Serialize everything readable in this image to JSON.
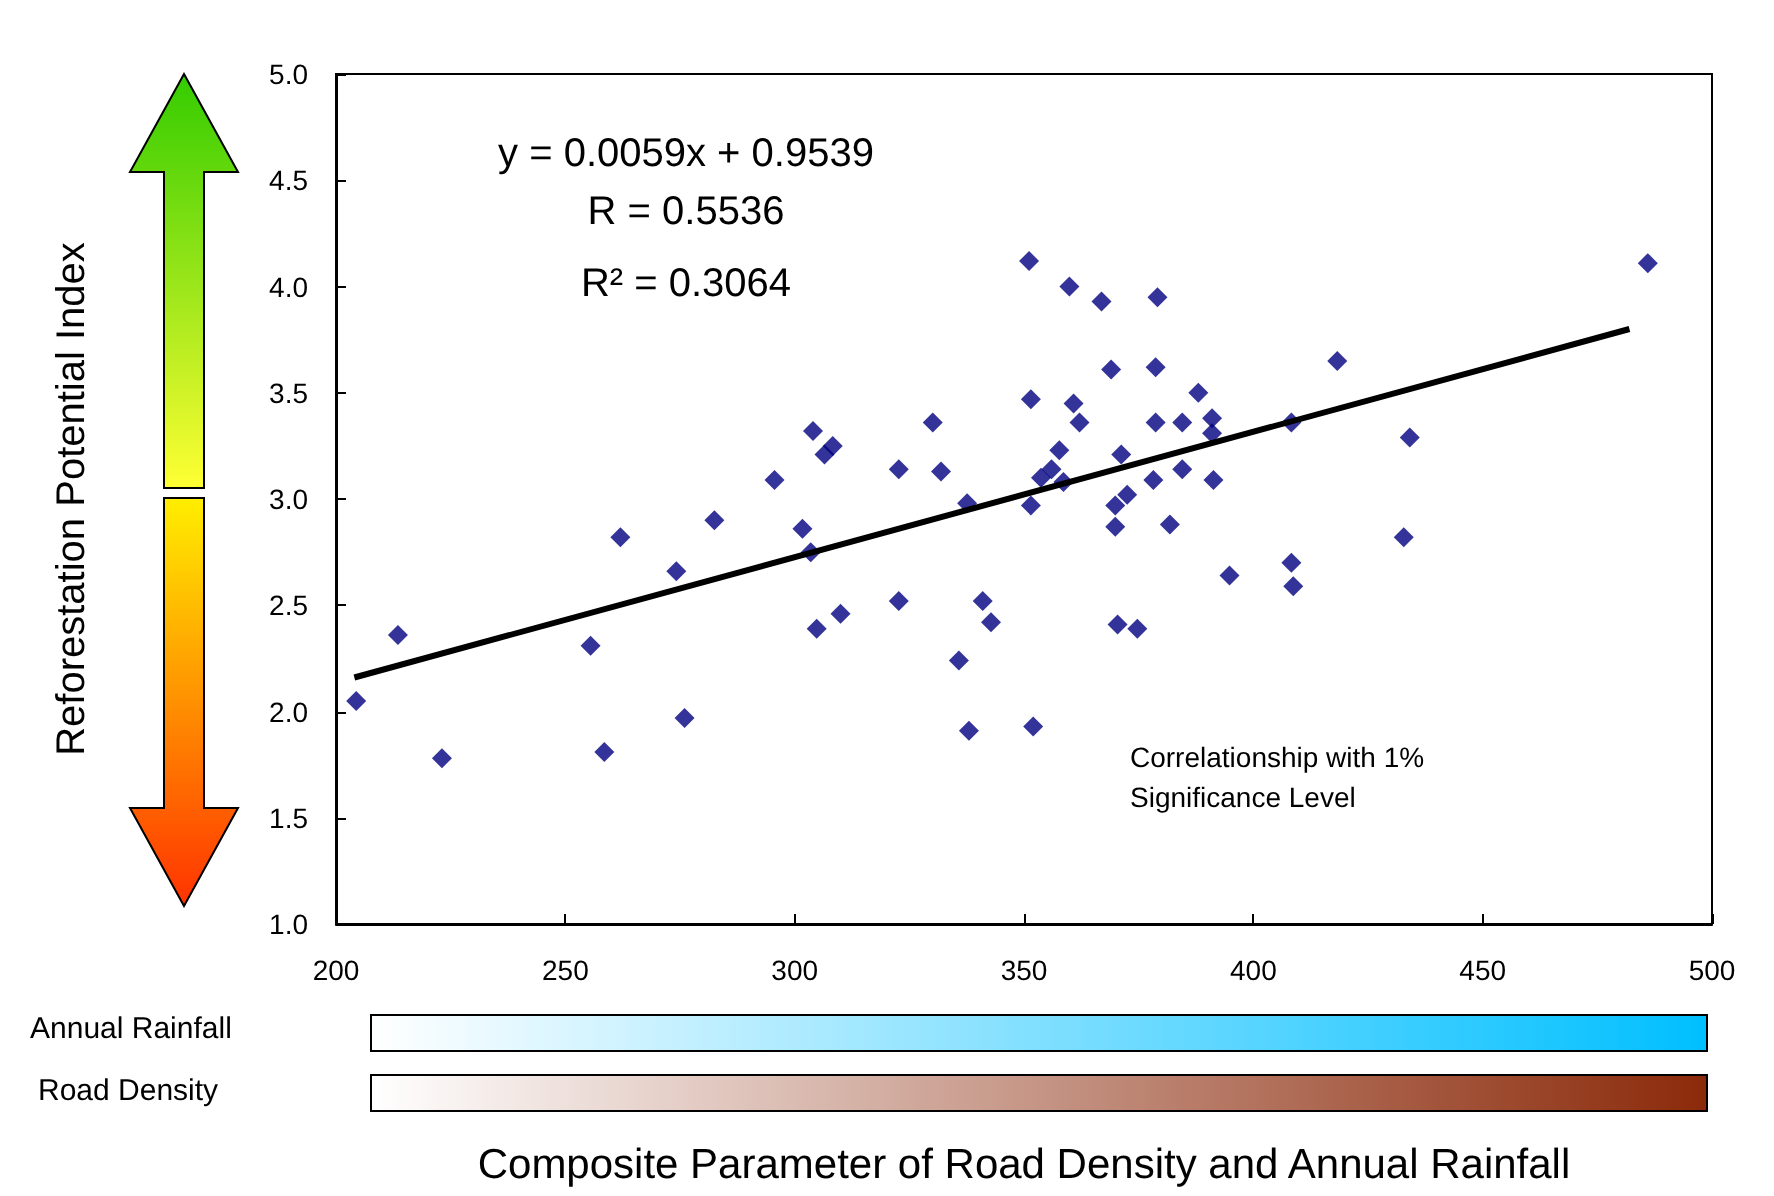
{
  "chart_data": {
    "type": "scatter",
    "xlabel": "Composite Parameter of Road Density and Annual Rainfall",
    "ylabel": "Reforestation Potential Index",
    "annotations": [
      "y = 0.0059x + 0.9539",
      "R = 0.5536",
      "R² = 0.3064",
      "Correlationship with 1% Significance Level",
      "Annual Rainfall",
      "Road Density"
    ],
    "xlim": [
      200,
      500
    ],
    "xticks": [
      200,
      250,
      300,
      350,
      400,
      450,
      500
    ],
    "ylim": [
      1,
      5
    ],
    "yticks": [
      {
        "value": 1,
        "label": "1.0"
      },
      {
        "value": 1.5,
        "label": "1.5"
      },
      {
        "value": 2,
        "label": "2.0"
      },
      {
        "value": 2.5,
        "label": "2.5"
      },
      {
        "value": 3,
        "label": "3.0"
      },
      {
        "value": 3.5,
        "label": "3.5"
      },
      {
        "value": 4,
        "label": "4.0"
      },
      {
        "value": 4.5,
        "label": "4.5"
      },
      {
        "value": 5,
        "label": "5.0"
      }
    ],
    "grid": false,
    "marker": "diamond",
    "series": [
      {
        "color": "#000080",
        "x": [
          204.4,
          213.5,
          223.1,
          255.5,
          258.5,
          262,
          274.2,
          276,
          282.5,
          295.6,
          301.7,
          303.5,
          304,
          304.8,
          306.5,
          308.3,
          310,
          322.7,
          322.7,
          330.1,
          331.9,
          335.8,
          337.6,
          338,
          341,
          342.8,
          351.1,
          351.5,
          351.5,
          352,
          353.7,
          356,
          357.7,
          358.6,
          359.9,
          360.8,
          362.1,
          366.9,
          369,
          369.9,
          369.9,
          370.4,
          371.2,
          372.5,
          374.7,
          378.2,
          378.7,
          379.1,
          378.7,
          381.8,
          384.5,
          384.5,
          388,
          391,
          391,
          391.3,
          394.8,
          408.3,
          408.3,
          408.7,
          418.3,
          432.8,
          434.1,
          486
        ],
        "values": [
          2.05,
          2.36,
          1.78,
          2.31,
          1.81,
          2.82,
          2.66,
          1.97,
          2.9,
          3.09,
          2.86,
          2.75,
          3.32,
          2.39,
          3.21,
          3.25,
          2.46,
          3.14,
          2.52,
          3.36,
          3.13,
          2.24,
          2.98,
          1.91,
          2.52,
          2.42,
          4.12,
          3.47,
          2.97,
          1.93,
          3.1,
          3.14,
          3.23,
          3.08,
          4,
          3.45,
          3.36,
          3.93,
          3.61,
          2.97,
          2.87,
          2.41,
          3.21,
          3.02,
          2.39,
          3.09,
          3.62,
          3.95,
          3.36,
          2.88,
          3.14,
          3.36,
          3.5,
          3.38,
          3.31,
          3.09,
          2.64,
          3.36,
          2.7,
          2.59,
          3.65,
          2.82,
          3.29,
          4.11
        ]
      },
      {
        "type": "line",
        "color": "#000000",
        "marker": "none",
        "x": [
          204,
          482
        ],
        "values": [
          2.16,
          3.8
        ]
      }
    ]
  }
}
